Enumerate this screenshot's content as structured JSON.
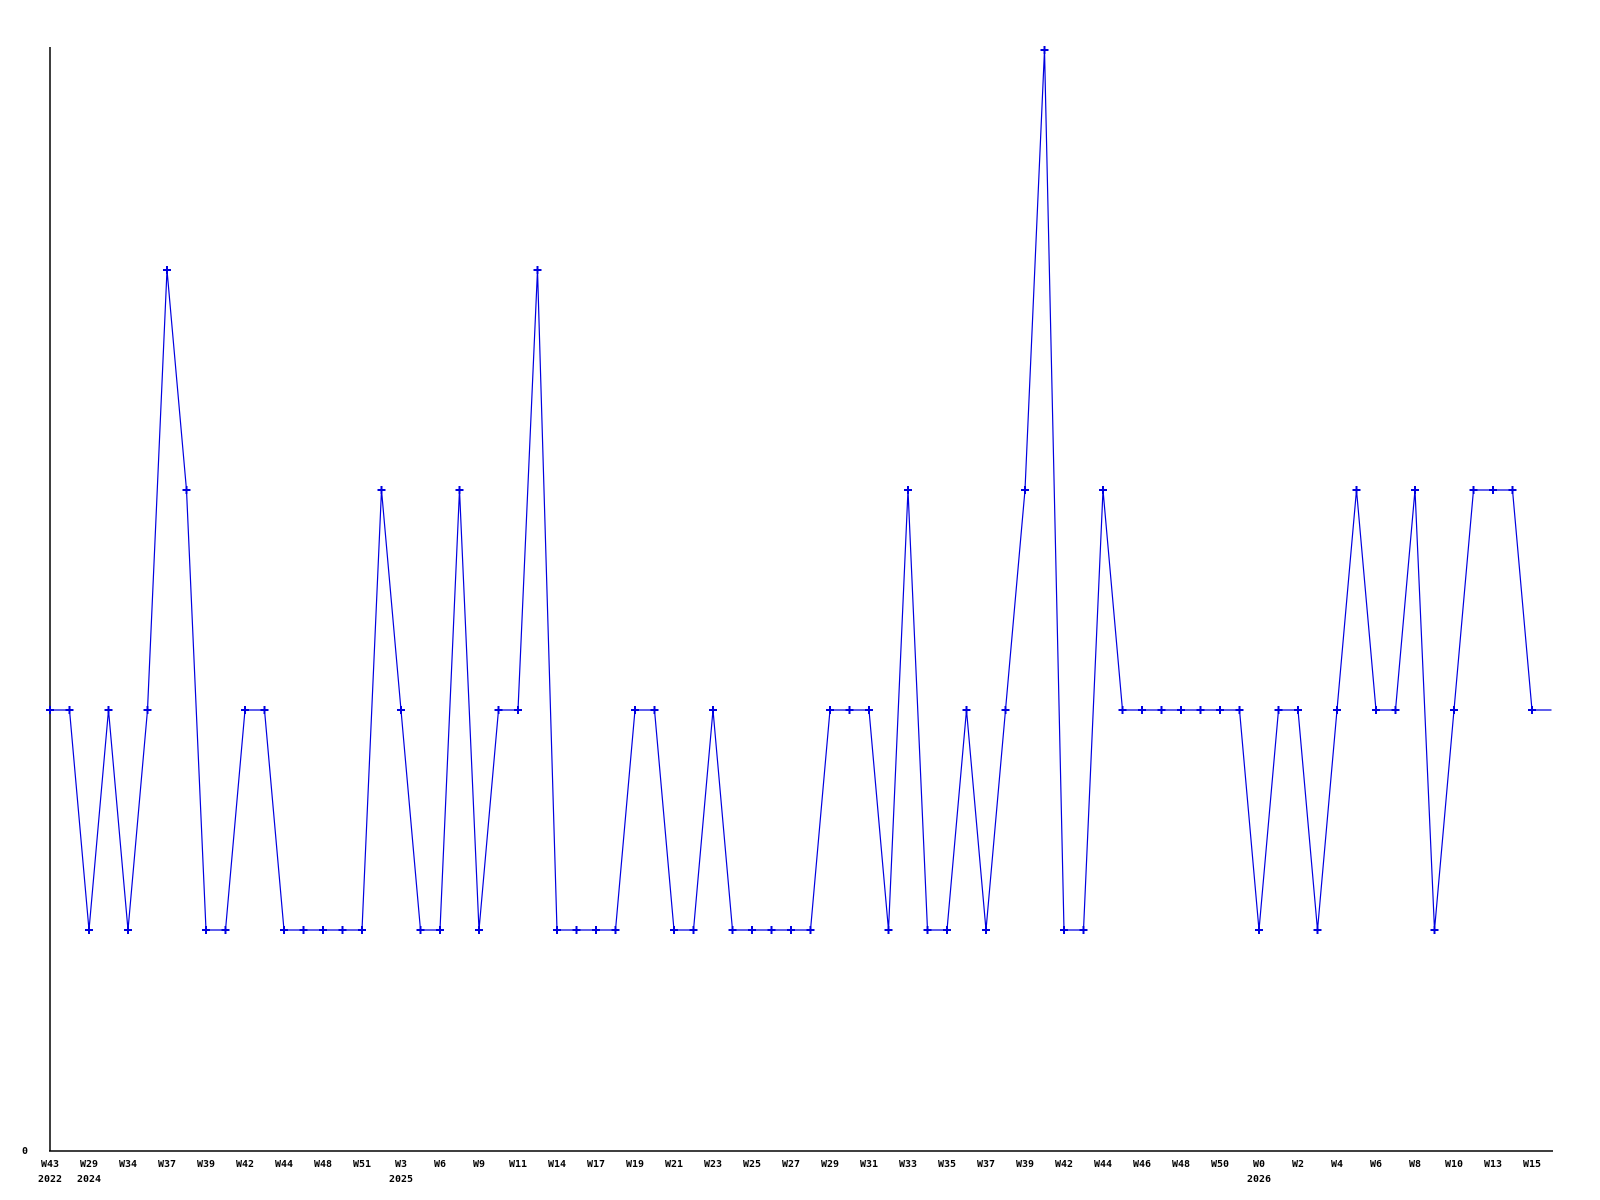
{
  "chart_data": {
    "type": "line",
    "title": "",
    "xlabel": "",
    "ylabel": "",
    "x_axis": {
      "tick_every": 2,
      "tick_labels": [
        "W43",
        "W29",
        "W34",
        "W37",
        "W39",
        "W42",
        "W44",
        "W48",
        "W51",
        "W3",
        "W6",
        "W9",
        "W11",
        "W14",
        "W17",
        "W19",
        "W21",
        "W23",
        "W25",
        "W27",
        "W29",
        "W31",
        "W33",
        "W35",
        "W37",
        "W39",
        "W42",
        "W44",
        "W46",
        "W48",
        "W50",
        "W0",
        "W2",
        "W4",
        "W6",
        "W8",
        "W10",
        "W13",
        "W15"
      ],
      "year_labels": [
        {
          "tick_index": 0,
          "label": "2022"
        },
        {
          "tick_index": 1,
          "label": "2024"
        },
        {
          "tick_index": 9,
          "label": "2025"
        },
        {
          "tick_index": 31,
          "label": "2026"
        }
      ]
    },
    "y_axis": {
      "zero_label": "0",
      "ylim": [
        0,
        5
      ],
      "grid": false
    },
    "series": [
      {
        "name": "weekly-count",
        "color": "#0000e0",
        "marker": "plus",
        "last_point_marker": false,
        "values": [
          2,
          2,
          1,
          2,
          1,
          2,
          4,
          3,
          1,
          1,
          2,
          2,
          1,
          1,
          1,
          1,
          1,
          3,
          2,
          1,
          1,
          3,
          1,
          2,
          2,
          4,
          1,
          1,
          1,
          1,
          2,
          2,
          1,
          1,
          2,
          1,
          1,
          1,
          1,
          1,
          2,
          2,
          2,
          1,
          3,
          1,
          1,
          2,
          1,
          2,
          3,
          5,
          1,
          1,
          3,
          2,
          2,
          2,
          2,
          2,
          2,
          2,
          1,
          2,
          2,
          1,
          2,
          3,
          2,
          2,
          3,
          1,
          2,
          3,
          3,
          3,
          2,
          2
        ]
      }
    ],
    "axis_color": "#000000",
    "background_color": "#ffffff"
  }
}
